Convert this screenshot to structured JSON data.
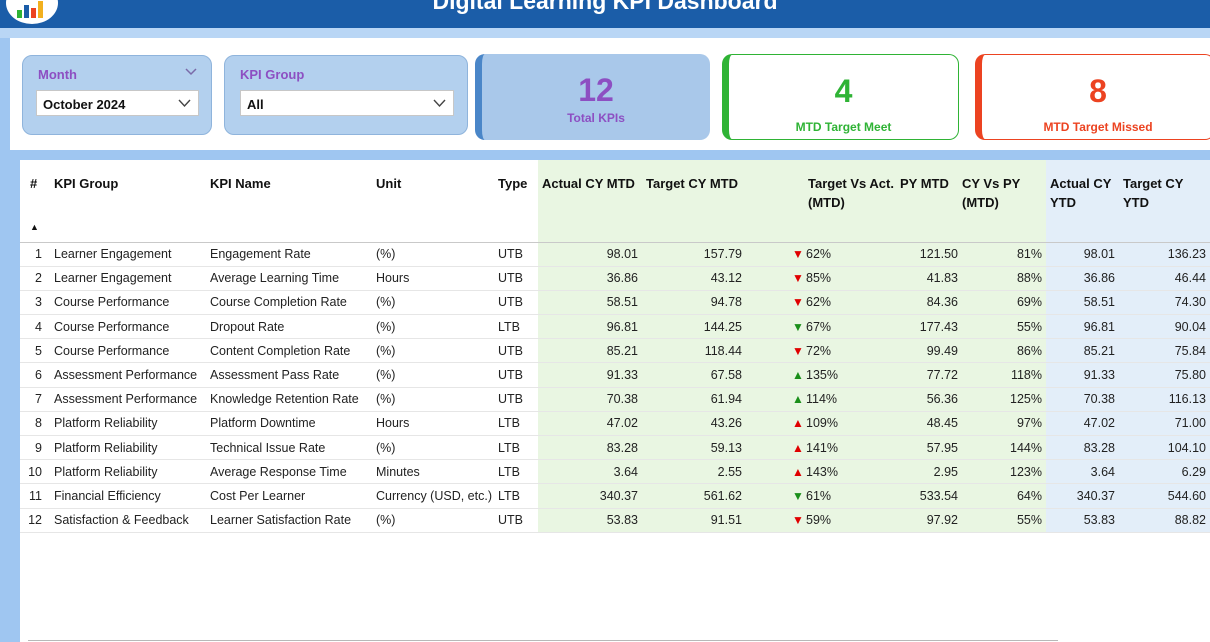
{
  "header": {
    "title": "Digital Learning KPI Dashboard",
    "colors": {
      "bar": "#1b5da8",
      "accent_purple": "#8d4fc2",
      "met": "#2fb335",
      "missed": "#ec4321"
    }
  },
  "filters": {
    "month": {
      "label": "Month",
      "value": "October 2024"
    },
    "kpi_group": {
      "label": "KPI Group",
      "value": "All"
    }
  },
  "cards": {
    "total": {
      "value": "12",
      "label": "Total KPIs"
    },
    "met": {
      "value": "4",
      "label": "MTD Target Meet"
    },
    "missed": {
      "value": "8",
      "label": "MTD Target Missed"
    }
  },
  "table": {
    "headers": {
      "num": "#",
      "group": "KPI Group",
      "name": "KPI Name",
      "unit": "Unit",
      "type": "Type",
      "actual_mtd": "Actual CY MTD",
      "target_mtd": "Target CY MTD",
      "tva": "Target Vs Act. (MTD)",
      "py_mtd": "PY MTD",
      "cy_vs_py": "CY Vs PY (MTD)",
      "actual_ytd": "Actual CY YTD",
      "target_ytd": "Target CY YTD"
    },
    "rows": [
      {
        "n": "1",
        "group": "Learner Engagement",
        "name": "Engagement Rate",
        "unit": "(%)",
        "type": "UTB",
        "actual": "98.01",
        "target": "157.79",
        "icon": "down-red",
        "pct": "62%",
        "py": "121.50",
        "cvp": "81%",
        "aytd": "98.01",
        "tytd": "136.23"
      },
      {
        "n": "2",
        "group": "Learner Engagement",
        "name": "Average Learning Time",
        "unit": "Hours",
        "type": "UTB",
        "actual": "36.86",
        "target": "43.12",
        "icon": "down-red",
        "pct": "85%",
        "py": "41.83",
        "cvp": "88%",
        "aytd": "36.86",
        "tytd": "46.44"
      },
      {
        "n": "3",
        "group": "Course Performance",
        "name": "Course Completion Rate",
        "unit": " (%)",
        "type": "UTB",
        "actual": "58.51",
        "target": "94.78",
        "icon": "down-red",
        "pct": "62%",
        "py": "84.36",
        "cvp": "69%",
        "aytd": "58.51",
        "tytd": "74.30"
      },
      {
        "n": "4",
        "group": "Course Performance",
        "name": "Dropout Rate",
        "unit": " (%)",
        "type": "LTB",
        "actual": "96.81",
        "target": "144.25",
        "icon": "down-green",
        "pct": "67%",
        "py": "177.43",
        "cvp": "55%",
        "aytd": "96.81",
        "tytd": "90.04"
      },
      {
        "n": "5",
        "group": "Course Performance",
        "name": "Content Completion Rate",
        "unit": " (%)",
        "type": "UTB",
        "actual": "85.21",
        "target": "118.44",
        "icon": "down-red",
        "pct": "72%",
        "py": "99.49",
        "cvp": "86%",
        "aytd": "85.21",
        "tytd": "75.84"
      },
      {
        "n": "6",
        "group": "Assessment Performance",
        "name": "Assessment Pass Rate",
        "unit": " (%)",
        "type": "UTB",
        "actual": "91.33",
        "target": "67.58",
        "icon": "up-green",
        "pct": "135%",
        "py": "77.72",
        "cvp": "118%",
        "aytd": "91.33",
        "tytd": "75.80"
      },
      {
        "n": "7",
        "group": "Assessment Performance",
        "name": "Knowledge Retention Rate",
        "unit": " (%)",
        "type": "UTB",
        "actual": "70.38",
        "target": "61.94",
        "icon": "up-green",
        "pct": "114%",
        "py": "56.36",
        "cvp": "125%",
        "aytd": "70.38",
        "tytd": "116.13"
      },
      {
        "n": "8",
        "group": "Platform Reliability",
        "name": "Platform Downtime",
        "unit": "Hours",
        "type": "LTB",
        "actual": "47.02",
        "target": "43.26",
        "icon": "up-red",
        "pct": "109%",
        "py": "48.45",
        "cvp": "97%",
        "aytd": "47.02",
        "tytd": "71.00"
      },
      {
        "n": "9",
        "group": "Platform Reliability",
        "name": "Technical Issue Rate",
        "unit": " (%)",
        "type": "LTB",
        "actual": "83.28",
        "target": "59.13",
        "icon": "up-red",
        "pct": "141%",
        "py": "57.95",
        "cvp": "144%",
        "aytd": "83.28",
        "tytd": "104.10"
      },
      {
        "n": "10",
        "group": "Platform Reliability",
        "name": "Average Response Time",
        "unit": " Minutes",
        "type": "LTB",
        "actual": "3.64",
        "target": "2.55",
        "icon": "up-red",
        "pct": "143%",
        "py": "2.95",
        "cvp": "123%",
        "aytd": "3.64",
        "tytd": "6.29"
      },
      {
        "n": "11",
        "group": "Financial Efficiency",
        "name": "Cost Per Learner",
        "unit": "Currency (USD, etc.)",
        "type": "LTB",
        "actual": "340.37",
        "target": "561.62",
        "icon": "down-green",
        "pct": "61%",
        "py": "533.54",
        "cvp": "64%",
        "aytd": "340.37",
        "tytd": "544.60"
      },
      {
        "n": "12",
        "group": "Satisfaction & Feedback",
        "name": "Learner Satisfaction Rate",
        "unit": " (%)",
        "type": "UTB",
        "actual": "53.83",
        "target": "91.51",
        "icon": "down-red",
        "pct": "59%",
        "py": "97.92",
        "cvp": "55%",
        "aytd": "53.83",
        "tytd": "88.82"
      }
    ]
  }
}
